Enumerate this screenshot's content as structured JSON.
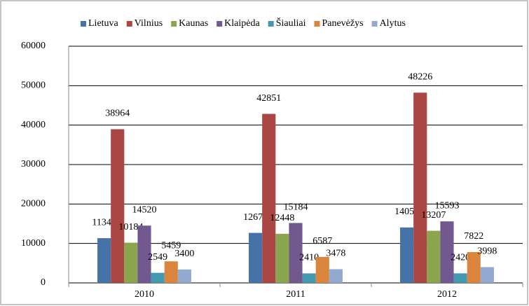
{
  "chart_data": {
    "type": "bar",
    "categories": [
      "2010",
      "2011",
      "2012"
    ],
    "series": [
      {
        "name": "Lietuva",
        "color": "#4572a7",
        "values": [
          11346,
          12678,
          14059
        ]
      },
      {
        "name": "Vilnius",
        "color": "#aa4643",
        "values": [
          38964,
          42851,
          48226
        ]
      },
      {
        "name": "Kaunas",
        "color": "#89a54e",
        "values": [
          10184,
          12448,
          13207
        ]
      },
      {
        "name": "Klaipėda",
        "color": "#71588f",
        "values": [
          14520,
          15184,
          15593
        ]
      },
      {
        "name": "Šiauliai",
        "color": "#4198af",
        "values": [
          2549,
          2410,
          2420
        ]
      },
      {
        "name": "Panevėžys",
        "color": "#db843d",
        "values": [
          5459,
          6587,
          7822
        ]
      },
      {
        "name": "Alytus",
        "color": "#93a9cf",
        "values": [
          3400,
          3478,
          3998
        ]
      }
    ],
    "ylim": [
      0,
      60000
    ],
    "yticks": [
      0,
      10000,
      20000,
      30000,
      40000,
      50000,
      60000
    ],
    "grid": true,
    "legend": "top"
  }
}
